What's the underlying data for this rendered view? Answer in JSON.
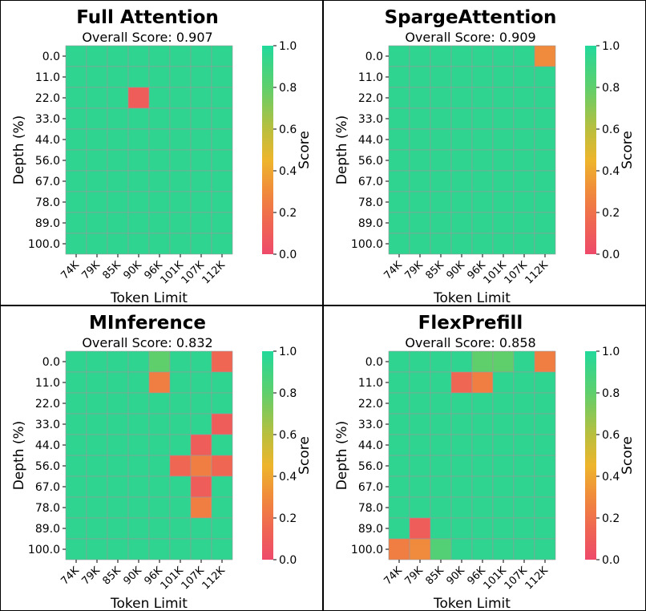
{
  "chart_data": [
    {
      "type": "heatmap",
      "title": "Full Attention",
      "subtitle": "Overall Score: 0.907",
      "xlabel": "Token Limit",
      "ylabel": "Depth (%)",
      "colorbar_label": "Score",
      "x_categories": [
        "74K",
        "79K",
        "85K",
        "90K",
        "96K",
        "101K",
        "107K",
        "112K"
      ],
      "y_categories": [
        "0.0",
        "11.0",
        "22.0",
        "33.0",
        "44.0",
        "56.0",
        "67.0",
        "78.0",
        "89.0",
        "100.0"
      ],
      "value_range": [
        0.0,
        1.0
      ],
      "colorbar_ticks": [
        "0.0",
        "0.2",
        "0.4",
        "0.6",
        "0.8",
        "1.0"
      ],
      "values": [
        [
          1,
          1,
          1,
          1,
          1,
          1,
          1,
          1
        ],
        [
          1,
          1,
          1,
          1,
          1,
          1,
          1,
          1
        ],
        [
          1,
          1,
          1,
          0.1,
          1,
          1,
          1,
          1
        ],
        [
          1,
          1,
          1,
          1,
          1,
          1,
          1,
          1
        ],
        [
          1,
          1,
          1,
          1,
          1,
          1,
          1,
          1
        ],
        [
          1,
          1,
          1,
          1,
          1,
          1,
          1,
          1
        ],
        [
          1,
          1,
          1,
          1,
          1,
          1,
          1,
          1
        ],
        [
          1,
          1,
          1,
          1,
          1,
          1,
          1,
          1
        ],
        [
          1,
          1,
          1,
          1,
          1,
          1,
          1,
          1
        ],
        [
          1,
          1,
          1,
          1,
          1,
          1,
          1,
          1
        ]
      ]
    },
    {
      "type": "heatmap",
      "title": "SpargeAttention",
      "subtitle": "Overall Score: 0.909",
      "xlabel": "Token Limit",
      "ylabel": "Depth (%)",
      "colorbar_label": "Score",
      "x_categories": [
        "74K",
        "79K",
        "85K",
        "90K",
        "96K",
        "101K",
        "107K",
        "112K"
      ],
      "y_categories": [
        "0.0",
        "11.0",
        "22.0",
        "33.0",
        "44.0",
        "56.0",
        "67.0",
        "78.0",
        "89.0",
        "100.0"
      ],
      "value_range": [
        0.0,
        1.0
      ],
      "colorbar_ticks": [
        "0.0",
        "0.2",
        "0.4",
        "0.6",
        "0.8",
        "1.0"
      ],
      "values": [
        [
          1,
          1,
          1,
          1,
          1,
          1,
          1,
          0.3
        ],
        [
          1,
          1,
          1,
          1,
          1,
          1,
          1,
          1
        ],
        [
          1,
          1,
          1,
          1,
          1,
          1,
          1,
          1
        ],
        [
          1,
          1,
          1,
          1,
          1,
          1,
          1,
          1
        ],
        [
          1,
          1,
          1,
          1,
          1,
          1,
          1,
          1
        ],
        [
          1,
          1,
          1,
          1,
          1,
          1,
          1,
          1
        ],
        [
          1,
          1,
          1,
          1,
          1,
          1,
          1,
          1
        ],
        [
          1,
          1,
          1,
          1,
          1,
          1,
          1,
          1
        ],
        [
          1,
          1,
          1,
          1,
          1,
          1,
          1,
          1
        ],
        [
          1,
          1,
          1,
          1,
          1,
          1,
          1,
          1
        ]
      ]
    },
    {
      "type": "heatmap",
      "title": "MInference",
      "subtitle": "Overall Score: 0.832",
      "xlabel": "Token Limit",
      "ylabel": "Depth (%)",
      "colorbar_label": "Score",
      "x_categories": [
        "74K",
        "79K",
        "85K",
        "90K",
        "96K",
        "101K",
        "107K",
        "112K"
      ],
      "y_categories": [
        "0.0",
        "11.0",
        "22.0",
        "33.0",
        "44.0",
        "56.0",
        "67.0",
        "78.0",
        "89.0",
        "100.0"
      ],
      "value_range": [
        0.0,
        1.0
      ],
      "colorbar_ticks": [
        "0.0",
        "0.2",
        "0.4",
        "0.6",
        "0.8",
        "1.0"
      ],
      "values": [
        [
          1,
          1,
          1,
          1,
          0.8,
          1,
          1,
          0.15
        ],
        [
          1,
          1,
          1,
          1,
          0.25,
          1,
          1,
          1
        ],
        [
          1,
          1,
          1,
          1,
          1,
          1,
          1,
          1
        ],
        [
          1,
          1,
          1,
          1,
          1,
          1,
          1,
          0.1
        ],
        [
          1,
          1,
          1,
          1,
          1,
          1,
          0.1,
          1
        ],
        [
          1,
          1,
          1,
          1,
          1,
          0.15,
          0.25,
          0.15
        ],
        [
          1,
          1,
          1,
          1,
          1,
          1,
          0.1,
          1
        ],
        [
          1,
          1,
          1,
          1,
          1,
          1,
          0.25,
          1
        ],
        [
          1,
          1,
          1,
          1,
          1,
          1,
          1,
          1
        ],
        [
          1,
          1,
          1,
          1,
          1,
          1,
          1,
          1
        ]
      ]
    },
    {
      "type": "heatmap",
      "title": "FlexPrefill",
      "subtitle": "Overall Score: 0.858",
      "xlabel": "Token Limit",
      "ylabel": "Depth (%)",
      "colorbar_label": "Score",
      "x_categories": [
        "74K",
        "79K",
        "85K",
        "90K",
        "96K",
        "101K",
        "107K",
        "112K"
      ],
      "y_categories": [
        "0.0",
        "11.0",
        "22.0",
        "33.0",
        "44.0",
        "56.0",
        "67.0",
        "78.0",
        "89.0",
        "100.0"
      ],
      "value_range": [
        0.0,
        1.0
      ],
      "colorbar_ticks": [
        "0.0",
        "0.2",
        "0.4",
        "0.6",
        "0.8",
        "1.0"
      ],
      "values": [
        [
          1,
          1,
          1,
          1,
          0.8,
          0.8,
          1,
          0.25
        ],
        [
          1,
          1,
          1,
          0.15,
          0.25,
          1,
          1,
          1
        ],
        [
          1,
          1,
          1,
          1,
          1,
          1,
          1,
          1
        ],
        [
          1,
          1,
          1,
          1,
          1,
          1,
          1,
          1
        ],
        [
          1,
          1,
          1,
          1,
          1,
          1,
          1,
          1
        ],
        [
          1,
          1,
          1,
          1,
          1,
          1,
          1,
          1
        ],
        [
          1,
          1,
          1,
          1,
          1,
          1,
          1,
          1
        ],
        [
          1,
          1,
          1,
          1,
          1,
          1,
          1,
          1
        ],
        [
          1,
          0.1,
          1,
          1,
          1,
          1,
          1,
          1
        ],
        [
          0.25,
          0.3,
          0.85,
          1,
          1,
          1,
          1,
          1
        ]
      ]
    }
  ]
}
